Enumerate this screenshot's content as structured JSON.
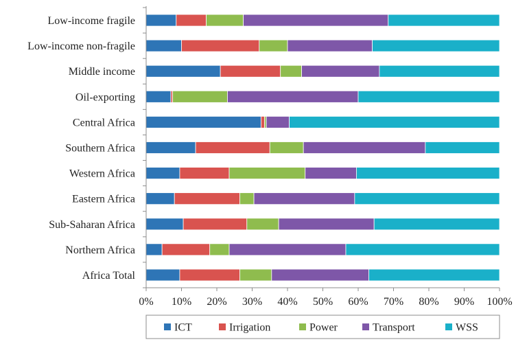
{
  "chart_data": {
    "type": "bar",
    "orientation": "horizontal",
    "stacked": "percent",
    "categories": [
      "Low-income fragile",
      "Low-income non-fragile",
      "Middle income",
      "Oil-exporting",
      "Central Africa",
      "Southern Africa",
      "Western Africa",
      "Eastern Africa",
      "Sub-Saharan Africa",
      "Northern Africa",
      "Africa Total"
    ],
    "series": [
      {
        "name": "ICT",
        "color": "#2e75b6",
        "values": [
          8.5,
          10,
          21,
          7,
          32.5,
          14,
          9.5,
          8,
          10.5,
          4.5,
          9.5
        ]
      },
      {
        "name": "Irrigation",
        "color": "#d9534f",
        "values": [
          8.5,
          22,
          17,
          0.5,
          1,
          21,
          14,
          18.5,
          18,
          13.5,
          17
        ]
      },
      {
        "name": "Power",
        "color": "#8fbc4e",
        "values": [
          10.5,
          8,
          6,
          15.5,
          0.5,
          9.5,
          21.5,
          4,
          9,
          5.5,
          9
        ]
      },
      {
        "name": "Transport",
        "color": "#7e57a8",
        "values": [
          41,
          24,
          22,
          37,
          6.5,
          34.5,
          14.5,
          28.5,
          27,
          33,
          27.5
        ]
      },
      {
        "name": "WSS",
        "color": "#1ab0c9",
        "values": [
          31.5,
          36,
          34,
          40,
          59.5,
          21,
          40.5,
          41,
          35.5,
          43.5,
          37
        ]
      }
    ],
    "xlim": [
      0,
      100
    ],
    "x_ticks": [
      "0%",
      "10%",
      "20%",
      "30%",
      "40%",
      "50%",
      "60%",
      "70%",
      "80%",
      "90%",
      "100%"
    ],
    "grid": false,
    "legend_position": "bottom"
  }
}
